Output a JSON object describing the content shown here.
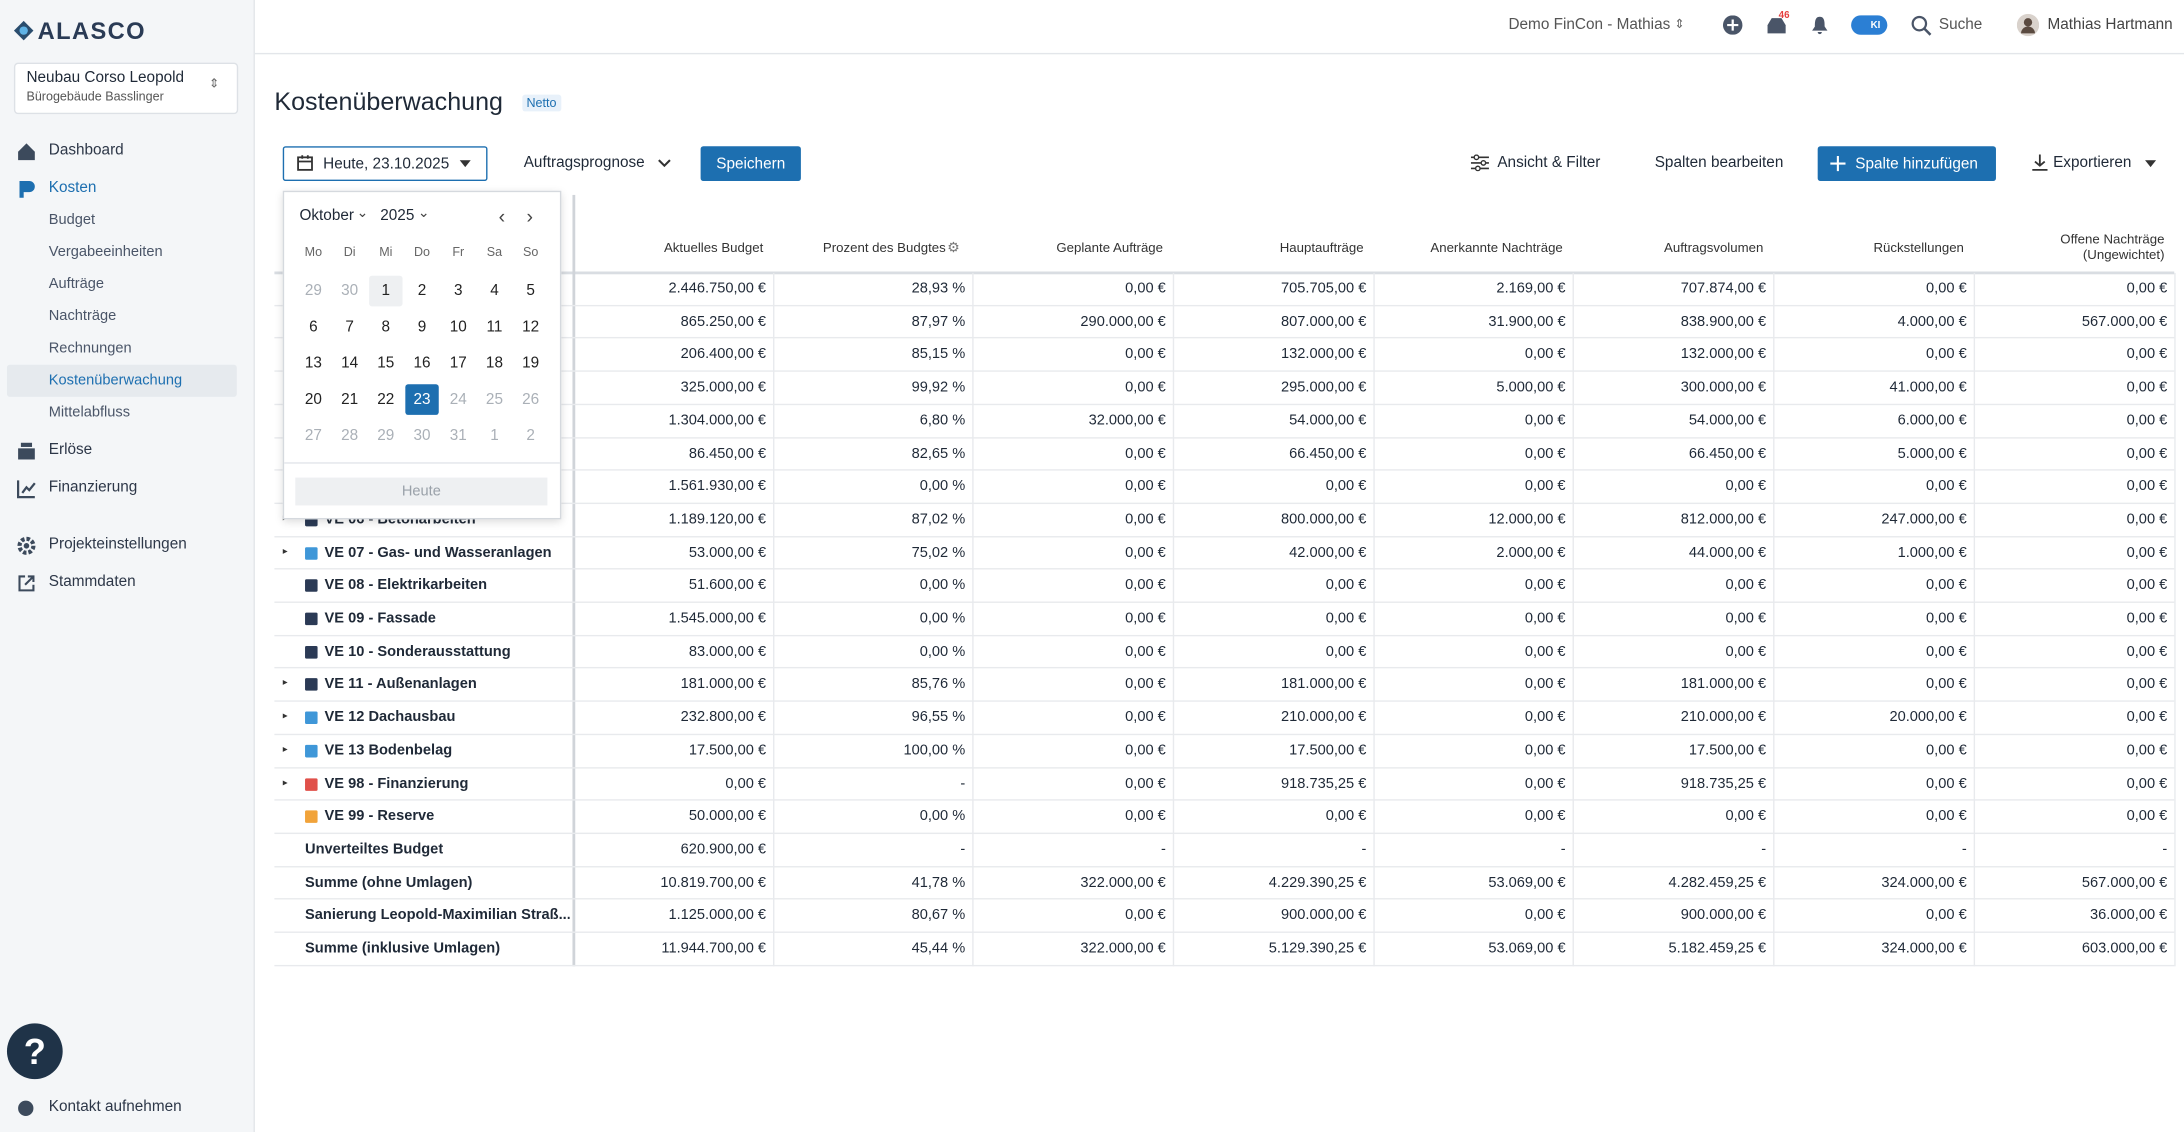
{
  "sidebar": {
    "logo": "ALASCO",
    "project": {
      "name": "Neubau Corso Leopold",
      "subtitle": "Bürogebäude Basslinger"
    },
    "nav": {
      "dashboard": "Dashboard",
      "kosten": "Kosten",
      "kosten_items": [
        "Budget",
        "Vergabeeinheiten",
        "Aufträge",
        "Nachträge",
        "Rechnungen",
        "Kostenüberwachung",
        "Mittelabfluss"
      ],
      "erloese": "Erlöse",
      "finanzierung": "Finanzierung",
      "settings": "Projekteinstellungen",
      "stammdaten": "Stammdaten"
    },
    "help": "?",
    "contact": "Kontakt aufnehmen"
  },
  "topbar": {
    "workspace": "Demo FinCon - Mathias",
    "inbox_badge": "46",
    "ai_badge": "KI",
    "search": "Suche",
    "user": "Mathias Hartmann"
  },
  "header": {
    "title": "Kostenüberwachung",
    "badge": "Netto"
  },
  "toolbar": {
    "date": "Heute, 23.10.2025",
    "forecast": "Auftragsprognose",
    "save": "Speichern",
    "filter": "Ansicht & Filter",
    "edit_columns": "Spalten bearbeiten",
    "add_column": "Spalte hinzufügen",
    "export": "Exportieren"
  },
  "calendar": {
    "month": "Oktober",
    "year": "2025",
    "weekdays": [
      "Mo",
      "Di",
      "Mi",
      "Do",
      "Fr",
      "Sa",
      "So"
    ],
    "weeks": [
      [
        29,
        30,
        1,
        2,
        3,
        4,
        5
      ],
      [
        6,
        7,
        8,
        9,
        10,
        11,
        12
      ],
      [
        13,
        14,
        15,
        16,
        17,
        18,
        19
      ],
      [
        20,
        21,
        22,
        23,
        24,
        25,
        26
      ],
      [
        27,
        28,
        29,
        30,
        31,
        1,
        2
      ]
    ],
    "selected": 23,
    "today_button": "Heute"
  },
  "table": {
    "columns": [
      "Aktuelles Budget",
      "Prozent des Budgtes",
      "Geplante Aufträge",
      "Hauptaufträge",
      "Anerkannte Nachträge",
      "Auftragsvolumen",
      "Rückstellungen",
      "Offene Nachträge (Ungewichtet)"
    ],
    "rows": [
      {
        "cells": [
          "2.446.750,00 €",
          "28,93 %",
          "0,00 €",
          "705.705,00 €",
          "2.169,00 €",
          "707.874,00 €",
          "0,00 €",
          "0,00 €"
        ]
      },
      {
        "cells": [
          "865.250,00 €",
          "87,97 %",
          "290.000,00 €",
          "807.000,00 €",
          "31.900,00 €",
          "838.900,00 €",
          "4.000,00 €",
          "567.000,00 €"
        ]
      },
      {
        "cells": [
          "206.400,00 €",
          "85,15 %",
          "0,00 €",
          "132.000,00 €",
          "0,00 €",
          "132.000,00 €",
          "0,00 €",
          "0,00 €"
        ]
      },
      {
        "cells": [
          "325.000,00 €",
          "99,92 %",
          "0,00 €",
          "295.000,00 €",
          "5.000,00 €",
          "300.000,00 €",
          "41.000,00 €",
          "0,00 €"
        ]
      },
      {
        "cells": [
          "1.304.000,00 €",
          "6,80 %",
          "32.000,00 €",
          "54.000,00 €",
          "0,00 €",
          "54.000,00 €",
          "6.000,00 €",
          "0,00 €"
        ]
      },
      {
        "cells": [
          "86.450,00 €",
          "82,65 %",
          "0,00 €",
          "66.450,00 €",
          "0,00 €",
          "66.450,00 €",
          "5.000,00 €",
          "0,00 €"
        ]
      },
      {
        "cells": [
          "1.561.930,00 €",
          "0,00 %",
          "0,00 €",
          "0,00 €",
          "0,00 €",
          "0,00 €",
          "0,00 €",
          "0,00 €"
        ]
      },
      {
        "label": "VE 06 - Betonarbeiten",
        "color": "#2b3a55",
        "expandable": true,
        "cells": [
          "1.189.120,00 €",
          "87,02 %",
          "0,00 €",
          "800.000,00 €",
          "12.000,00 €",
          "812.000,00 €",
          "247.000,00 €",
          "0,00 €"
        ]
      },
      {
        "label": "VE 07 - Gas- und Wasseranlagen",
        "color": "#3f97d8",
        "expandable": true,
        "cells": [
          "53.000,00 €",
          "75,02 %",
          "0,00 €",
          "42.000,00 €",
          "2.000,00 €",
          "44.000,00 €",
          "1.000,00 €",
          "0,00 €"
        ]
      },
      {
        "label": "VE 08 - Elektrikarbeiten",
        "color": "#2b3a55",
        "expandable": false,
        "cells": [
          "51.600,00 €",
          "0,00 %",
          "0,00 €",
          "0,00 €",
          "0,00 €",
          "0,00 €",
          "0,00 €",
          "0,00 €"
        ]
      },
      {
        "label": "VE 09 - Fassade",
        "color": "#2b3a55",
        "expandable": false,
        "cells": [
          "1.545.000,00 €",
          "0,00 %",
          "0,00 €",
          "0,00 €",
          "0,00 €",
          "0,00 €",
          "0,00 €",
          "0,00 €"
        ]
      },
      {
        "label": "VE 10 - Sonderausstattung",
        "color": "#2b3a55",
        "expandable": false,
        "cells": [
          "83.000,00 €",
          "0,00 %",
          "0,00 €",
          "0,00 €",
          "0,00 €",
          "0,00 €",
          "0,00 €",
          "0,00 €"
        ]
      },
      {
        "label": "VE 11 - Außenanlagen",
        "color": "#2b3a55",
        "expandable": true,
        "cells": [
          "181.000,00 €",
          "85,76 %",
          "0,00 €",
          "181.000,00 €",
          "0,00 €",
          "181.000,00 €",
          "0,00 €",
          "0,00 €"
        ]
      },
      {
        "label": "VE 12 Dachausbau",
        "color": "#3f97d8",
        "expandable": true,
        "cells": [
          "232.800,00 €",
          "96,55 %",
          "0,00 €",
          "210.000,00 €",
          "0,00 €",
          "210.000,00 €",
          "20.000,00 €",
          "0,00 €"
        ]
      },
      {
        "label": "VE 13 Bodenbelag",
        "color": "#3f97d8",
        "expandable": true,
        "cells": [
          "17.500,00 €",
          "100,00 %",
          "0,00 €",
          "17.500,00 €",
          "0,00 €",
          "17.500,00 €",
          "0,00 €",
          "0,00 €"
        ]
      },
      {
        "label": "VE 98 - Finanzierung",
        "color": "#e0504a",
        "expandable": true,
        "cells": [
          "0,00 €",
          "-",
          "0,00 €",
          "918.735,25 €",
          "0,00 €",
          "918.735,25 €",
          "0,00 €",
          "0,00 €"
        ]
      },
      {
        "label": "VE 99 - Reserve",
        "color": "#f1a33a",
        "expandable": false,
        "cells": [
          "50.000,00 €",
          "0,00 %",
          "0,00 €",
          "0,00 €",
          "0,00 €",
          "0,00 €",
          "0,00 €",
          "0,00 €"
        ]
      },
      {
        "label": "Unverteiltes Budget",
        "cells": [
          "620.900,00 €",
          "-",
          "-",
          "-",
          "-",
          "-",
          "-",
          "-"
        ]
      },
      {
        "label": "Summe (ohne Umlagen)",
        "cells": [
          "10.819.700,00 €",
          "41,78 %",
          "322.000,00 €",
          "4.229.390,25 €",
          "53.069,00 €",
          "4.282.459,25 €",
          "324.000,00 €",
          "567.000,00 €"
        ]
      },
      {
        "label": "Sanierung Leopold-Maximilian Straß...",
        "cells": [
          "1.125.000,00 €",
          "80,67 %",
          "0,00 €",
          "900.000,00 €",
          "0,00 €",
          "900.000,00 €",
          "0,00 €",
          "36.000,00 €"
        ]
      },
      {
        "label": "Summe (inklusive Umlagen)",
        "cells": [
          "11.944.700,00 €",
          "45,44 %",
          "322.000,00 €",
          "5.129.390,25 €",
          "53.069,00 €",
          "5.182.459,25 €",
          "324.000,00 €",
          "603.000,00 €"
        ]
      }
    ]
  }
}
